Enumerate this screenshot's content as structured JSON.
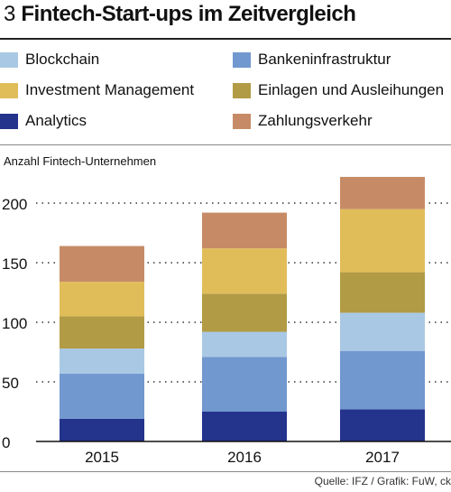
{
  "header": {
    "number": "3",
    "title": "Fintech-Start-ups im Zeitvergleich"
  },
  "source": "Quelle: IFZ / Grafik: FuW, ck",
  "chart_data": {
    "type": "bar",
    "stacked": true,
    "ylabel": "Anzahl Fintech-Unternehmen",
    "ylim": [
      0,
      225
    ],
    "yticks": [
      0,
      50,
      100,
      150,
      200
    ],
    "grid": "dotted horizontal",
    "legend_position": "top",
    "categories": [
      "2015",
      "2016",
      "2017"
    ],
    "series": [
      {
        "name": "Analytics",
        "color": "#24338c",
        "values": [
          19,
          25,
          27
        ]
      },
      {
        "name": "Bankeninfrastruktur",
        "color": "#7198cf",
        "values": [
          38,
          46,
          49
        ]
      },
      {
        "name": "Blockchain",
        "color": "#a9c8e4",
        "values": [
          21,
          21,
          32
        ]
      },
      {
        "name": "Einlagen und Ausleihungen",
        "color": "#b29b45",
        "values": [
          27,
          32,
          34
        ]
      },
      {
        "name": "Investment Management",
        "color": "#e1bd5a",
        "values": [
          29,
          38,
          53
        ]
      },
      {
        "name": "Zahlungsverkehr",
        "color": "#c68b66",
        "values": [
          30,
          30,
          27
        ]
      }
    ]
  },
  "legend_order": [
    2,
    1,
    4,
    3,
    0,
    5
  ]
}
